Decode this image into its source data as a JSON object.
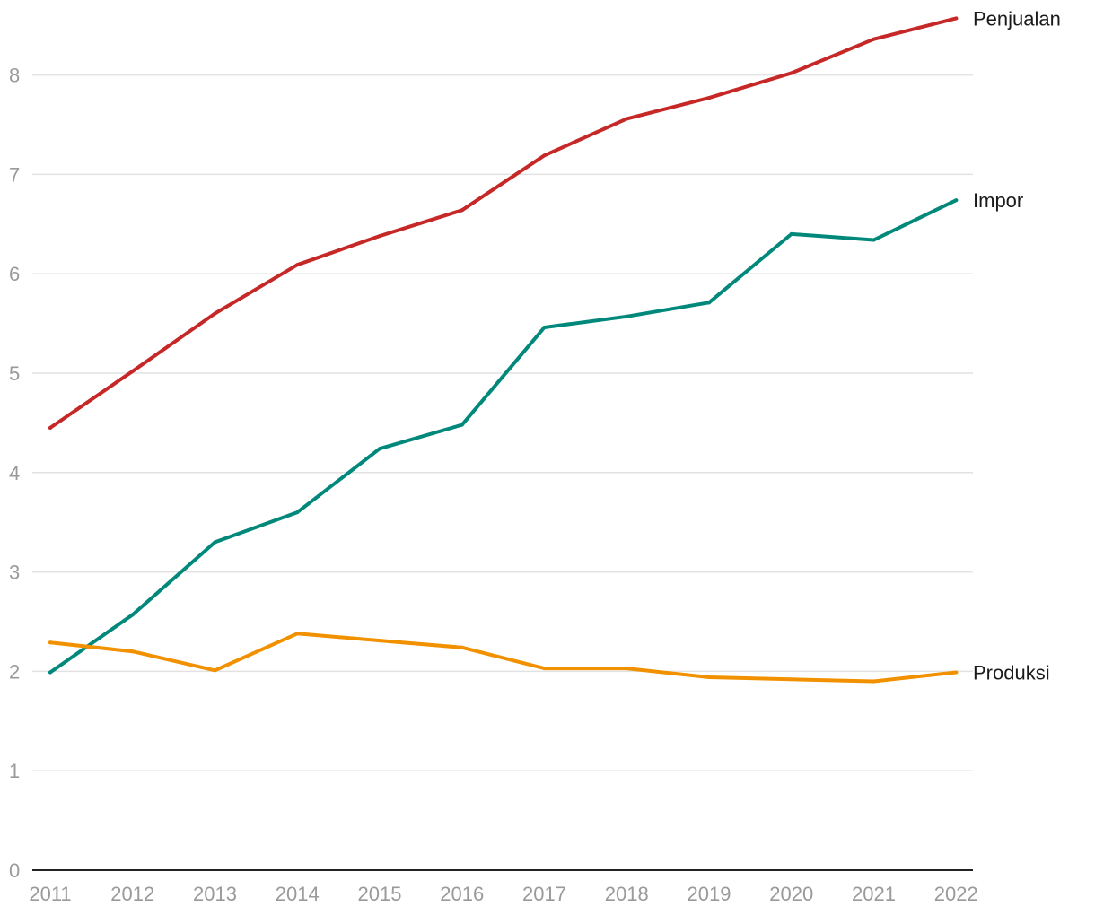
{
  "chart_data": {
    "type": "line",
    "title": "",
    "xlabel": "",
    "ylabel": "",
    "x": [
      "2011",
      "2012",
      "2013",
      "2014",
      "2015",
      "2016",
      "2017",
      "2018",
      "2019",
      "2020",
      "2021",
      "2022"
    ],
    "ylim": [
      0,
      8.6
    ],
    "yticks": [
      "0",
      "1",
      "2",
      "3",
      "4",
      "5",
      "6",
      "7",
      "8"
    ],
    "grid": true,
    "legend": "inline-right",
    "series": [
      {
        "name": "Penjualan",
        "color": "#c62828",
        "values": [
          4.45,
          5.02,
          5.6,
          6.09,
          6.38,
          6.64,
          7.19,
          7.56,
          7.77,
          8.02,
          8.36,
          8.57
        ]
      },
      {
        "name": "Impor",
        "color": "#00897b",
        "values": [
          1.99,
          2.57,
          3.3,
          3.6,
          4.24,
          4.48,
          5.46,
          5.57,
          5.71,
          6.4,
          6.34,
          6.74
        ]
      },
      {
        "name": "Produksi",
        "color": "#f29100",
        "values": [
          2.29,
          2.2,
          2.01,
          2.38,
          2.31,
          2.24,
          2.03,
          2.03,
          1.94,
          1.92,
          1.9,
          1.99
        ]
      }
    ]
  }
}
